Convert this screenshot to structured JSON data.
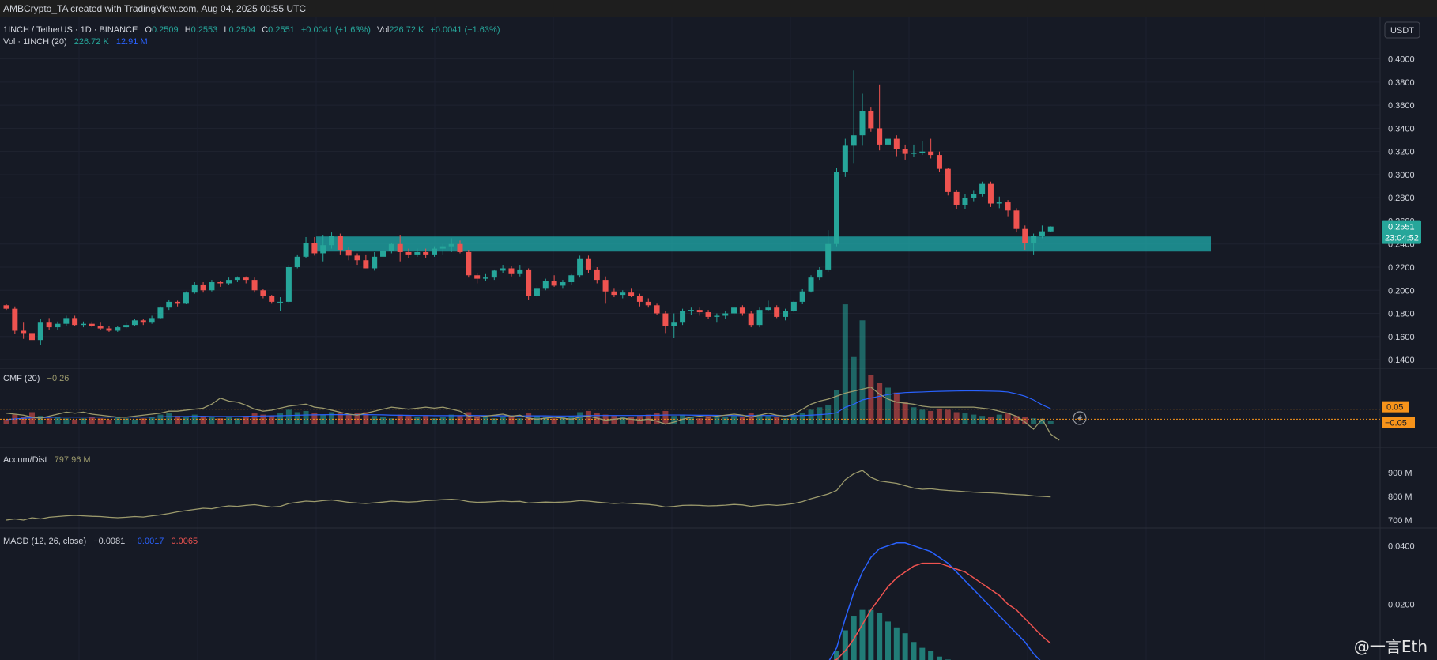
{
  "header": {
    "title": "AMBCrypto_TA created with TradingView.com, Aug 04, 2025 00:55 UTC"
  },
  "colors": {
    "background": "#161a25",
    "bull": "#26a69a",
    "bear": "#ef5350",
    "zone": "#1fa7a7",
    "cmf": "#9c9a6c",
    "volume_ma": "#2962ff",
    "macd_line": "#2962ff",
    "signal_line": "#ef5350",
    "last_price": "#26a69a",
    "band_label": "#f7931a"
  },
  "legend": {
    "symbol": "1INCH / TetherUS · 1D · BINANCE",
    "o_label": "O",
    "o_value": "0.2509",
    "h_label": "H",
    "h_value": "0.2553",
    "l_label": "L",
    "l_value": "0.2504",
    "c_label": "C",
    "c_value": "0.2551",
    "change": "+0.0041 (+1.63%)",
    "vol_label": "Vol",
    "vol_value": "226.72 K",
    "vol_change": "+0.0041 (+1.63%)",
    "volume_title": "Vol · 1INCH (20)",
    "volume_value": "226.72 K",
    "volume_ma": "12.91 M"
  },
  "price_axis": {
    "currency": "USDT",
    "ticks": [
      "0.4000",
      "0.3800",
      "0.3600",
      "0.3400",
      "0.3200",
      "0.3000",
      "0.2800",
      "0.2600",
      "0.2400",
      "0.2200",
      "0.2000",
      "0.1800",
      "0.1600",
      "0.1400"
    ],
    "last_price": "0.2551",
    "countdown": "23:04:52"
  },
  "cmf": {
    "title": "CMF (20)",
    "value": "−0.26",
    "upper_label": "0.05",
    "lower_label": "−0.05",
    "upper_level": 0.05,
    "lower_level": -0.05
  },
  "accum": {
    "title": "Accum/Dist",
    "value": "797.96 M",
    "ticks": [
      "900 M",
      "800 M",
      "700 M"
    ]
  },
  "macd": {
    "title": "MACD (12, 26, close)",
    "value": "−0.0081",
    "macd_value": "−0.0017",
    "signal_value": "0.0065",
    "ticks": [
      "0.0400",
      "0.0200"
    ]
  },
  "watermark": "@一言Eth",
  "chart_data": {
    "type": "candlestick",
    "support_zone": [
      0.2335,
      0.2465
    ],
    "ylim": [
      0.125,
      0.41
    ],
    "ohlc": [
      [
        0.187,
        0.188,
        0.183,
        0.184
      ],
      [
        0.184,
        0.186,
        0.162,
        0.165
      ],
      [
        0.165,
        0.172,
        0.158,
        0.163
      ],
      [
        0.163,
        0.165,
        0.152,
        0.157
      ],
      [
        0.157,
        0.175,
        0.153,
        0.172
      ],
      [
        0.172,
        0.176,
        0.166,
        0.168
      ],
      [
        0.168,
        0.173,
        0.166,
        0.171
      ],
      [
        0.171,
        0.178,
        0.169,
        0.176
      ],
      [
        0.176,
        0.178,
        0.169,
        0.17
      ],
      [
        0.17,
        0.173,
        0.168,
        0.171
      ],
      [
        0.171,
        0.173,
        0.168,
        0.169
      ],
      [
        0.169,
        0.172,
        0.166,
        0.167
      ],
      [
        0.167,
        0.169,
        0.164,
        0.165
      ],
      [
        0.165,
        0.169,
        0.164,
        0.168
      ],
      [
        0.168,
        0.172,
        0.167,
        0.17
      ],
      [
        0.17,
        0.175,
        0.169,
        0.174
      ],
      [
        0.174,
        0.175,
        0.17,
        0.172
      ],
      [
        0.172,
        0.178,
        0.171,
        0.176
      ],
      [
        0.176,
        0.186,
        0.175,
        0.185
      ],
      [
        0.185,
        0.192,
        0.183,
        0.19
      ],
      [
        0.19,
        0.191,
        0.186,
        0.189
      ],
      [
        0.189,
        0.199,
        0.188,
        0.198
      ],
      [
        0.198,
        0.207,
        0.197,
        0.205
      ],
      [
        0.205,
        0.207,
        0.198,
        0.2
      ],
      [
        0.2,
        0.209,
        0.199,
        0.207
      ],
      [
        0.207,
        0.208,
        0.203,
        0.206
      ],
      [
        0.206,
        0.211,
        0.205,
        0.209
      ],
      [
        0.209,
        0.212,
        0.207,
        0.211
      ],
      [
        0.211,
        0.212,
        0.206,
        0.209
      ],
      [
        0.209,
        0.211,
        0.198,
        0.2
      ],
      [
        0.2,
        0.201,
        0.193,
        0.195
      ],
      [
        0.195,
        0.196,
        0.189,
        0.19
      ],
      [
        0.19,
        0.194,
        0.182,
        0.19
      ],
      [
        0.19,
        0.222,
        0.189,
        0.22
      ],
      [
        0.22,
        0.231,
        0.219,
        0.229
      ],
      [
        0.229,
        0.246,
        0.228,
        0.241
      ],
      [
        0.241,
        0.246,
        0.23,
        0.232
      ],
      [
        0.232,
        0.248,
        0.225,
        0.239
      ],
      [
        0.239,
        0.25,
        0.236,
        0.247
      ],
      [
        0.247,
        0.249,
        0.231,
        0.235
      ],
      [
        0.235,
        0.237,
        0.226,
        0.23
      ],
      [
        0.23,
        0.232,
        0.222,
        0.226
      ],
      [
        0.226,
        0.231,
        0.219,
        0.219
      ],
      [
        0.219,
        0.233,
        0.217,
        0.229
      ],
      [
        0.229,
        0.236,
        0.227,
        0.234
      ],
      [
        0.234,
        0.241,
        0.232,
        0.24
      ],
      [
        0.24,
        0.248,
        0.225,
        0.233
      ],
      [
        0.233,
        0.236,
        0.228,
        0.231
      ],
      [
        0.231,
        0.236,
        0.229,
        0.233
      ],
      [
        0.233,
        0.236,
        0.228,
        0.231
      ],
      [
        0.231,
        0.238,
        0.229,
        0.236
      ],
      [
        0.236,
        0.24,
        0.231,
        0.238
      ],
      [
        0.238,
        0.245,
        0.233,
        0.24
      ],
      [
        0.24,
        0.243,
        0.232,
        0.233
      ],
      [
        0.233,
        0.235,
        0.211,
        0.213
      ],
      [
        0.213,
        0.215,
        0.206,
        0.21
      ],
      [
        0.21,
        0.214,
        0.208,
        0.211
      ],
      [
        0.211,
        0.218,
        0.209,
        0.217
      ],
      [
        0.217,
        0.222,
        0.215,
        0.219
      ],
      [
        0.219,
        0.221,
        0.212,
        0.214
      ],
      [
        0.214,
        0.222,
        0.212,
        0.218
      ],
      [
        0.218,
        0.219,
        0.192,
        0.195
      ],
      [
        0.195,
        0.205,
        0.193,
        0.202
      ],
      [
        0.202,
        0.21,
        0.2,
        0.208
      ],
      [
        0.208,
        0.213,
        0.203,
        0.204
      ],
      [
        0.204,
        0.209,
        0.202,
        0.207
      ],
      [
        0.207,
        0.214,
        0.205,
        0.213
      ],
      [
        0.213,
        0.23,
        0.211,
        0.227
      ],
      [
        0.227,
        0.23,
        0.215,
        0.218
      ],
      [
        0.218,
        0.22,
        0.206,
        0.209
      ],
      [
        0.209,
        0.212,
        0.189,
        0.199
      ],
      [
        0.199,
        0.202,
        0.194,
        0.196
      ],
      [
        0.196,
        0.2,
        0.193,
        0.198
      ],
      [
        0.198,
        0.202,
        0.194,
        0.195
      ],
      [
        0.195,
        0.197,
        0.186,
        0.19
      ],
      [
        0.19,
        0.193,
        0.185,
        0.187
      ],
      [
        0.187,
        0.189,
        0.179,
        0.18
      ],
      [
        0.18,
        0.182,
        0.163,
        0.169
      ],
      [
        0.169,
        0.18,
        0.159,
        0.172
      ],
      [
        0.172,
        0.184,
        0.17,
        0.182
      ],
      [
        0.182,
        0.185,
        0.179,
        0.183
      ],
      [
        0.183,
        0.185,
        0.178,
        0.181
      ],
      [
        0.181,
        0.183,
        0.175,
        0.177
      ],
      [
        0.177,
        0.18,
        0.172,
        0.178
      ],
      [
        0.178,
        0.182,
        0.175,
        0.18
      ],
      [
        0.18,
        0.186,
        0.178,
        0.185
      ],
      [
        0.185,
        0.187,
        0.178,
        0.18
      ],
      [
        0.18,
        0.182,
        0.168,
        0.17
      ],
      [
        0.17,
        0.185,
        0.168,
        0.183
      ],
      [
        0.183,
        0.191,
        0.182,
        0.185
      ],
      [
        0.185,
        0.187,
        0.176,
        0.177
      ],
      [
        0.177,
        0.184,
        0.174,
        0.182
      ],
      [
        0.182,
        0.191,
        0.181,
        0.19
      ],
      [
        0.19,
        0.201,
        0.188,
        0.199
      ],
      [
        0.199,
        0.213,
        0.198,
        0.211
      ],
      [
        0.211,
        0.22,
        0.209,
        0.218
      ],
      [
        0.218,
        0.252,
        0.216,
        0.24
      ],
      [
        0.24,
        0.306,
        0.238,
        0.302
      ],
      [
        0.302,
        0.331,
        0.298,
        0.325
      ],
      [
        0.325,
        0.39,
        0.31,
        0.334
      ],
      [
        0.334,
        0.37,
        0.325,
        0.355
      ],
      [
        0.355,
        0.358,
        0.337,
        0.34
      ],
      [
        0.34,
        0.378,
        0.321,
        0.326
      ],
      [
        0.326,
        0.338,
        0.322,
        0.331
      ],
      [
        0.331,
        0.334,
        0.316,
        0.322
      ],
      [
        0.322,
        0.326,
        0.313,
        0.318
      ],
      [
        0.318,
        0.326,
        0.315,
        0.319
      ],
      [
        0.319,
        0.329,
        0.317,
        0.32
      ],
      [
        0.32,
        0.331,
        0.314,
        0.317
      ],
      [
        0.317,
        0.32,
        0.302,
        0.305
      ],
      [
        0.305,
        0.306,
        0.282,
        0.285
      ],
      [
        0.285,
        0.287,
        0.27,
        0.274
      ],
      [
        0.274,
        0.283,
        0.27,
        0.28
      ],
      [
        0.28,
        0.286,
        0.277,
        0.283
      ],
      [
        0.283,
        0.294,
        0.281,
        0.292
      ],
      [
        0.292,
        0.294,
        0.272,
        0.275
      ],
      [
        0.275,
        0.281,
        0.271,
        0.276
      ],
      [
        0.276,
        0.278,
        0.264,
        0.269
      ],
      [
        0.269,
        0.271,
        0.25,
        0.253
      ],
      [
        0.253,
        0.256,
        0.235,
        0.241
      ],
      [
        0.241,
        0.249,
        0.231,
        0.247
      ],
      [
        0.247,
        0.256,
        0.245,
        0.251
      ],
      [
        0.2509,
        0.2553,
        0.2504,
        0.2551
      ]
    ],
    "volume": [
      4,
      8,
      6,
      10,
      7,
      5,
      6,
      5,
      4,
      5,
      6,
      5,
      4,
      6,
      5,
      4,
      5,
      6,
      8,
      9,
      7,
      6,
      8,
      7,
      6,
      5,
      6,
      5,
      7,
      9,
      8,
      7,
      9,
      12,
      10,
      11,
      9,
      8,
      10,
      9,
      8,
      9,
      10,
      7,
      6,
      5,
      8,
      7,
      6,
      7,
      5,
      6,
      8,
      7,
      10,
      7,
      6,
      5,
      6,
      7,
      5,
      9,
      7,
      6,
      5,
      6,
      7,
      10,
      11,
      9,
      8,
      7,
      6,
      6,
      7,
      8,
      9,
      11,
      7,
      8,
      6,
      5,
      7,
      6,
      6,
      7,
      6,
      9,
      8,
      7,
      6,
      5,
      8,
      9,
      12,
      14,
      16,
      28,
      98,
      55,
      85,
      40,
      34,
      30,
      26,
      18,
      14,
      12,
      11,
      13,
      12,
      10,
      9,
      8,
      7,
      6,
      8,
      9,
      7,
      6,
      5,
      4,
      3
    ],
    "volume_ma": [
      4,
      4.5,
      5,
      5.5,
      5.5,
      5.8,
      6,
      6,
      6,
      6,
      6,
      6,
      6,
      6,
      6,
      6,
      6,
      6,
      6.2,
      6.4,
      6.5,
      6.5,
      6.6,
      6.6,
      6.5,
      6.5,
      6.5,
      6.5,
      6.6,
      6.8,
      6.9,
      7,
      7.1,
      7.3,
      7.5,
      7.7,
      7.8,
      7.9,
      8,
      8,
      8,
      8,
      8,
      7.9,
      7.8,
      7.6,
      7.5,
      7.4,
      7.3,
      7.3,
      7.2,
      7.2,
      7.2,
      7.2,
      7.3,
      7.3,
      7.2,
      7.1,
      7,
      7,
      6.9,
      7,
      7,
      7,
      6.9,
      6.9,
      6.9,
      7,
      7.2,
      7.3,
      7.3,
      7.3,
      7.3,
      7.3,
      7.3,
      7.4,
      7.5,
      7.7,
      7.7,
      7.7,
      7.6,
      7.5,
      7.5,
      7.4,
      7.3,
      7.3,
      7.2,
      7.3,
      7.3,
      7.3,
      7.2,
      7.1,
      7.2,
      7.3,
      7.6,
      8,
      8.5,
      9.5,
      14,
      16.5,
      20,
      21.5,
      23,
      24.3,
      25.4,
      26,
      26.3,
      26.5,
      26.8,
      27,
      27.2,
      27.3,
      27.4,
      27.4,
      27.3,
      27.2,
      27,
      26.5,
      25,
      23,
      20,
      16,
      12.9
    ],
    "cmf": [
      0.01,
      0.0,
      -0.01,
      -0.03,
      -0.04,
      -0.02,
      0.0,
      0.02,
      0.01,
      0.02,
      0.0,
      -0.01,
      -0.02,
      -0.03,
      -0.03,
      -0.02,
      -0.01,
      0.0,
      0.01,
      0.03,
      0.03,
      0.04,
      0.05,
      0.06,
      0.1,
      0.16,
      0.13,
      0.12,
      0.09,
      0.05,
      0.03,
      0.04,
      0.06,
      0.08,
      0.09,
      0.1,
      0.07,
      0.06,
      0.04,
      0.02,
      0.0,
      -0.01,
      0.01,
      0.03,
      0.05,
      0.07,
      0.06,
      0.05,
      0.06,
      0.07,
      0.06,
      0.07,
      0.05,
      0.03,
      -0.02,
      -0.03,
      -0.02,
      -0.01,
      0.0,
      -0.02,
      -0.01,
      -0.04,
      -0.05,
      -0.04,
      -0.03,
      -0.04,
      -0.05,
      -0.03,
      -0.02,
      -0.04,
      -0.06,
      -0.05,
      -0.04,
      -0.05,
      -0.06,
      -0.05,
      -0.07,
      -0.1,
      -0.08,
      -0.05,
      -0.03,
      -0.02,
      -0.03,
      -0.02,
      -0.01,
      0.0,
      -0.01,
      -0.03,
      -0.01,
      0.01,
      -0.01,
      -0.02,
      0.0,
      0.05,
      0.1,
      0.13,
      0.15,
      0.18,
      0.21,
      0.23,
      0.25,
      0.27,
      0.2,
      0.15,
      0.12,
      0.11,
      0.1,
      0.08,
      0.07,
      0.07,
      0.07,
      0.07,
      0.07,
      0.07,
      0.06,
      0.05,
      0.03,
      0.01,
      -0.02,
      -0.08,
      -0.15,
      -0.05,
      -0.2,
      -0.26
    ],
    "accum": [
      700,
      705,
      700,
      710,
      705,
      712,
      715,
      718,
      720,
      718,
      716,
      715,
      712,
      710,
      712,
      715,
      713,
      718,
      722,
      728,
      735,
      740,
      745,
      750,
      748,
      755,
      760,
      758,
      762,
      765,
      760,
      755,
      758,
      770,
      775,
      780,
      778,
      782,
      785,
      780,
      775,
      772,
      770,
      773,
      776,
      780,
      778,
      776,
      778,
      782,
      784,
      786,
      788,
      785,
      778,
      775,
      776,
      778,
      780,
      778,
      779,
      772,
      774,
      776,
      775,
      776,
      778,
      782,
      780,
      776,
      773,
      770,
      772,
      770,
      768,
      766,
      762,
      755,
      758,
      762,
      763,
      762,
      760,
      761,
      763,
      766,
      764,
      758,
      762,
      765,
      762,
      765,
      770,
      778,
      790,
      800,
      810,
      825,
      870,
      895,
      910,
      880,
      865,
      860,
      855,
      845,
      835,
      830,
      832,
      828,
      825,
      823,
      820,
      818,
      816,
      815,
      813,
      810,
      808,
      806,
      802,
      800,
      797.96
    ],
    "macd": [
      0,
      0,
      0,
      0,
      0,
      0,
      0,
      0,
      0,
      0,
      0,
      0,
      0,
      0,
      0,
      0,
      0,
      0,
      0,
      0,
      0,
      0,
      0,
      0,
      0,
      0,
      0,
      0,
      0,
      0,
      0,
      0,
      0,
      0,
      0,
      0,
      0,
      0,
      0,
      0,
      0,
      0,
      0,
      0,
      0,
      0,
      0,
      0,
      0,
      0,
      0,
      0,
      0,
      0,
      0,
      0,
      0,
      0,
      0,
      0,
      0,
      0,
      0,
      0,
      0,
      0,
      0,
      0,
      0,
      0,
      0,
      0,
      0,
      0,
      0,
      0,
      0,
      0,
      0,
      0,
      0,
      0,
      0,
      0,
      0,
      0,
      0,
      0,
      0,
      0,
      0,
      0,
      0,
      0,
      0,
      0,
      0,
      0.005,
      0.015,
      0.024,
      0.031,
      0.036,
      0.039,
      0.04,
      0.041,
      0.041,
      0.04,
      0.039,
      0.038,
      0.036,
      0.034,
      0.031,
      0.028,
      0.025,
      0.022,
      0.019,
      0.016,
      0.013,
      0.01,
      0.007,
      0.003,
      0.0,
      -0.0017
    ],
    "signal": [
      0,
      0,
      0,
      0,
      0,
      0,
      0,
      0,
      0,
      0,
      0,
      0,
      0,
      0,
      0,
      0,
      0,
      0,
      0,
      0,
      0,
      0,
      0,
      0,
      0,
      0,
      0,
      0,
      0,
      0,
      0,
      0,
      0,
      0,
      0,
      0,
      0,
      0,
      0,
      0,
      0,
      0,
      0,
      0,
      0,
      0,
      0,
      0,
      0,
      0,
      0,
      0,
      0,
      0,
      0,
      0,
      0,
      0,
      0,
      0,
      0,
      0,
      0,
      0,
      0,
      0,
      0,
      0,
      0,
      0,
      0,
      0,
      0,
      0,
      0,
      0,
      0,
      0,
      0,
      0,
      0,
      0,
      0,
      0,
      0,
      0,
      0,
      0,
      0,
      0,
      0,
      0,
      0,
      0,
      0,
      0,
      0,
      0.001,
      0.004,
      0.008,
      0.013,
      0.018,
      0.022,
      0.026,
      0.029,
      0.031,
      0.033,
      0.034,
      0.034,
      0.034,
      0.033,
      0.032,
      0.031,
      0.029,
      0.027,
      0.025,
      0.023,
      0.02,
      0.018,
      0.015,
      0.012,
      0.009,
      0.0065
    ]
  }
}
